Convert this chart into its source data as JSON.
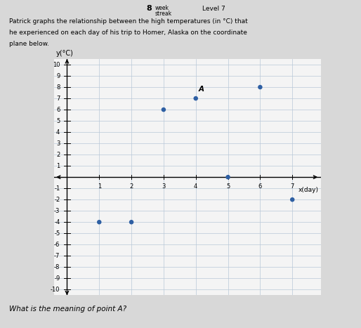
{
  "points": [
    [
      1,
      -4
    ],
    [
      2,
      -4
    ],
    [
      3,
      6
    ],
    [
      4,
      7
    ],
    [
      5,
      0
    ],
    [
      6,
      8
    ],
    [
      7,
      -2
    ]
  ],
  "point_A": [
    4,
    7
  ],
  "point_A_label": "A",
  "xlabel": "x(day)",
  "ylabel": "y(°C)",
  "xlim": [
    -0.4,
    7.9
  ],
  "ylim": [
    -10.5,
    10.5
  ],
  "xticks": [
    1,
    2,
    3,
    4,
    5,
    6,
    7
  ],
  "yticks": [
    -10,
    -9,
    -8,
    -7,
    -6,
    -5,
    -4,
    -3,
    -2,
    -1,
    1,
    2,
    3,
    4,
    5,
    6,
    7,
    8,
    9,
    10
  ],
  "dot_color": "#2e5fa3",
  "dot_size": 22,
  "grid_color": "#b8c8d8",
  "bg_plot": "#f4f4f4",
  "bg_fig": "#d8d8d8",
  "header_line1": "Patrick graphs the relationship between the high temperatures (in °C) that",
  "header_line2": "he experienced on each day of his trip to Homer, Alaska on the coordinate",
  "header_line3": "plane below.",
  "footer_text": "What is the meaning of point A?",
  "figsize": [
    5.14,
    4.67
  ],
  "dpi": 100
}
